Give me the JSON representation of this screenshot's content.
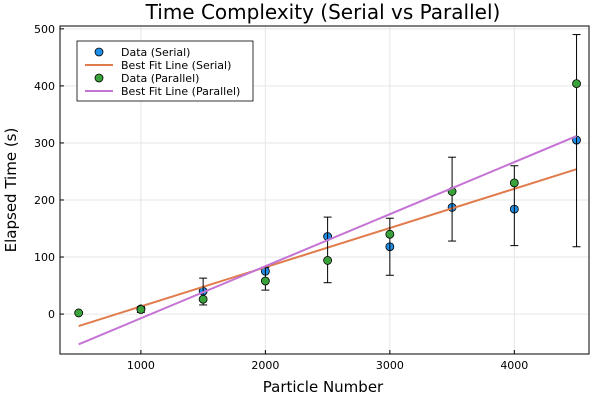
{
  "chart_data": {
    "type": "scatter",
    "title": "Time Complexity (Serial vs Parallel)",
    "xlabel": "Particle Number",
    "ylabel": "Elapsed Time (s)",
    "xlim": [
      350,
      4600
    ],
    "ylim": [
      -70,
      505
    ],
    "xticks": [
      1000,
      2000,
      3000,
      4000
    ],
    "yticks": [
      0,
      100,
      200,
      300,
      400,
      500
    ],
    "grid": true,
    "legend_position": "top-left",
    "series": [
      {
        "name": "Data (Serial)",
        "kind": "points",
        "color": "#1e8ee6",
        "points": [
          {
            "x": 1000,
            "y": 9
          },
          {
            "x": 1500,
            "y": 40
          },
          {
            "x": 2000,
            "y": 75
          },
          {
            "x": 2500,
            "y": 136
          },
          {
            "x": 3000,
            "y": 118
          },
          {
            "x": 3500,
            "y": 187
          },
          {
            "x": 4000,
            "y": 184
          },
          {
            "x": 4500,
            "y": 305
          }
        ]
      },
      {
        "name": "Best Fit Line (Serial)",
        "kind": "line",
        "color": "#e07c4c",
        "points": [
          {
            "x": 500,
            "y": -21
          },
          {
            "x": 4500,
            "y": 254
          }
        ]
      },
      {
        "name": "Data (Parallel)",
        "kind": "points",
        "color": "#3aa23a",
        "points": [
          {
            "x": 500,
            "y": 2
          },
          {
            "x": 1000,
            "y": 8,
            "err_low": 3,
            "err_high": 13
          },
          {
            "x": 1500,
            "y": 26,
            "err_low": 16,
            "err_high": 63
          },
          {
            "x": 2000,
            "y": 58,
            "err_low": 42,
            "err_high": 82
          },
          {
            "x": 2500,
            "y": 94,
            "err_low": 55,
            "err_high": 170
          },
          {
            "x": 3000,
            "y": 140,
            "err_low": 68,
            "err_high": 168
          },
          {
            "x": 3500,
            "y": 215,
            "err_low": 128,
            "err_high": 275
          },
          {
            "x": 4000,
            "y": 230,
            "err_low": 120,
            "err_high": 260
          },
          {
            "x": 4500,
            "y": 404,
            "err_low": 118,
            "err_high": 490
          }
        ]
      },
      {
        "name": "Best Fit Line (Parallel)",
        "kind": "line",
        "color": "#c474d4",
        "points": [
          {
            "x": 500,
            "y": -53
          },
          {
            "x": 4500,
            "y": 312
          }
        ]
      }
    ]
  }
}
